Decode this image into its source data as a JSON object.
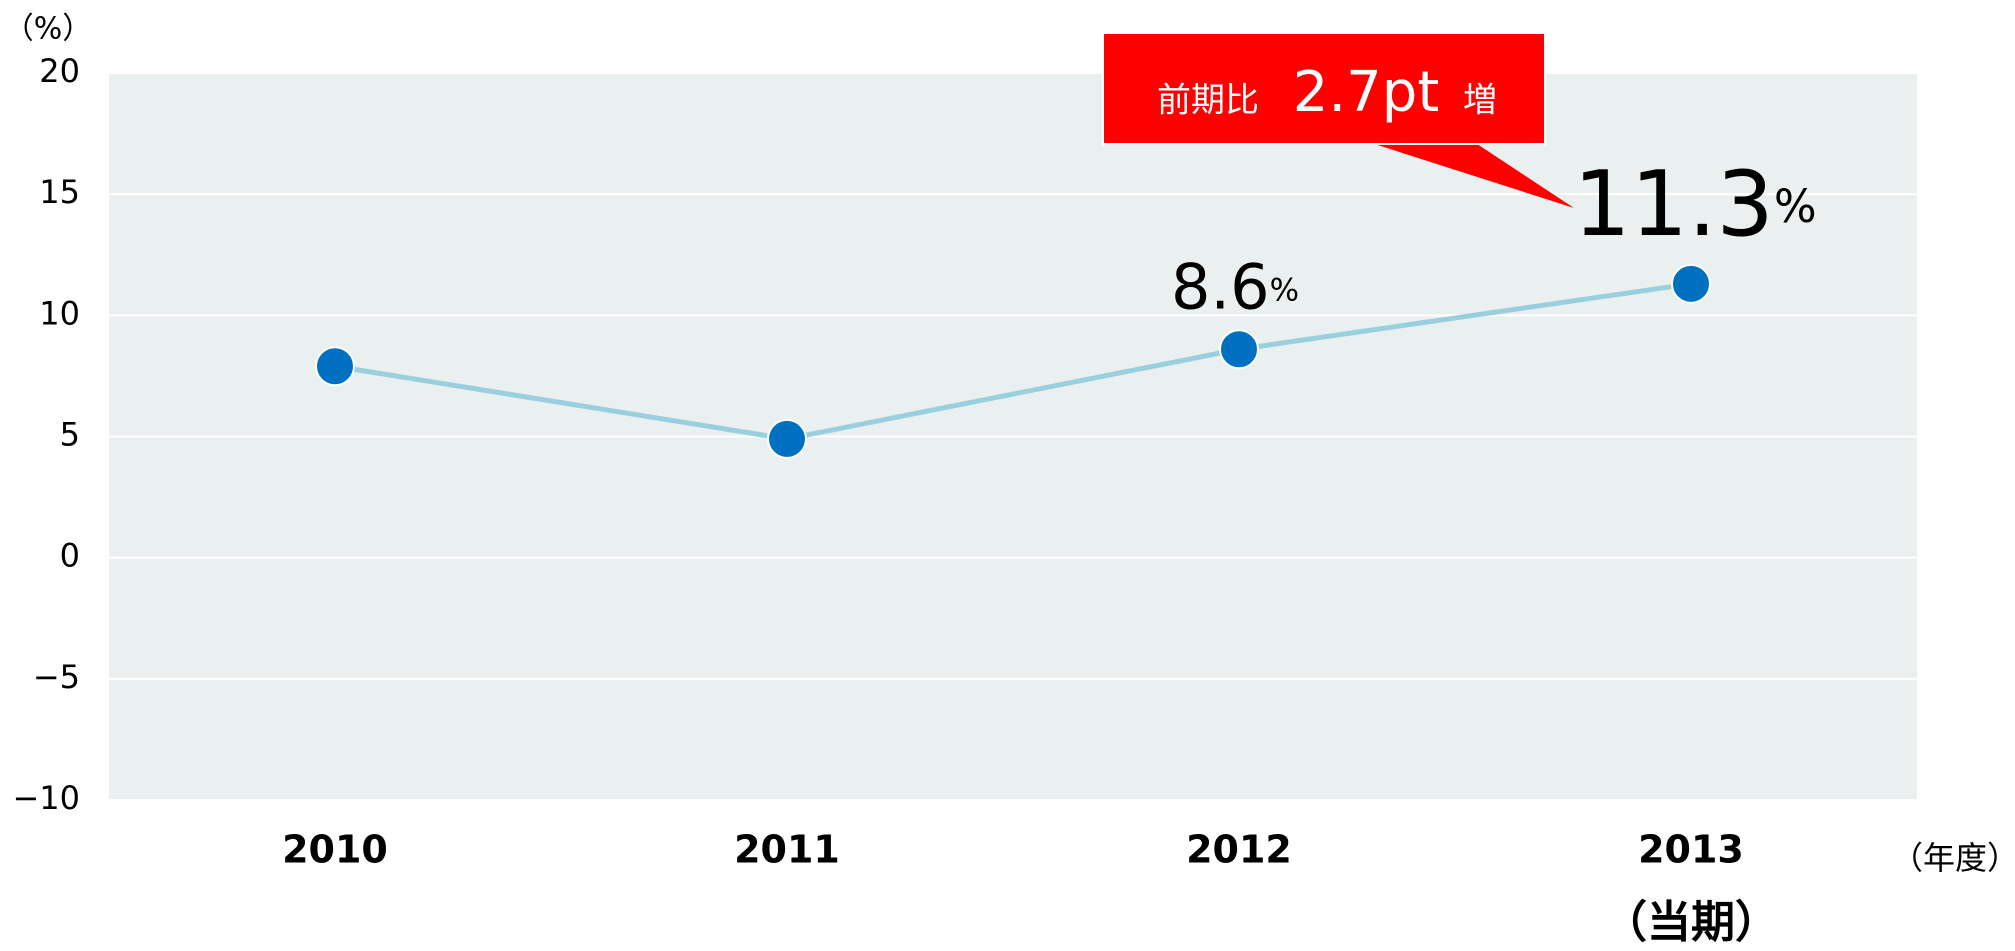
{
  "chart_data": {
    "type": "line",
    "y_axis_label": "（%）",
    "x_axis_label": "（年度）",
    "categories": [
      "2010",
      "2011",
      "2012",
      "2013"
    ],
    "category_note": "（当期）",
    "series": [
      {
        "name": null,
        "color": "#9acfde",
        "marker_color": "#0070c0",
        "values": [
          7.9,
          4.9,
          8.6,
          11.3
        ],
        "value_labels": [
          null,
          null,
          "8.6%",
          "11.3%"
        ]
      }
    ],
    "ylim": [
      -10,
      20
    ],
    "yticks": [
      {
        "value": -10,
        "label": "−10"
      },
      {
        "value": -5,
        "label": "−5"
      },
      0,
      5,
      10,
      15,
      20
    ],
    "grid": true,
    "plot_background": "#eaf0f0",
    "annotation": {
      "prefix": "前期比",
      "value": "2.7pt",
      "suffix": "増",
      "color": "#ff0000"
    }
  }
}
